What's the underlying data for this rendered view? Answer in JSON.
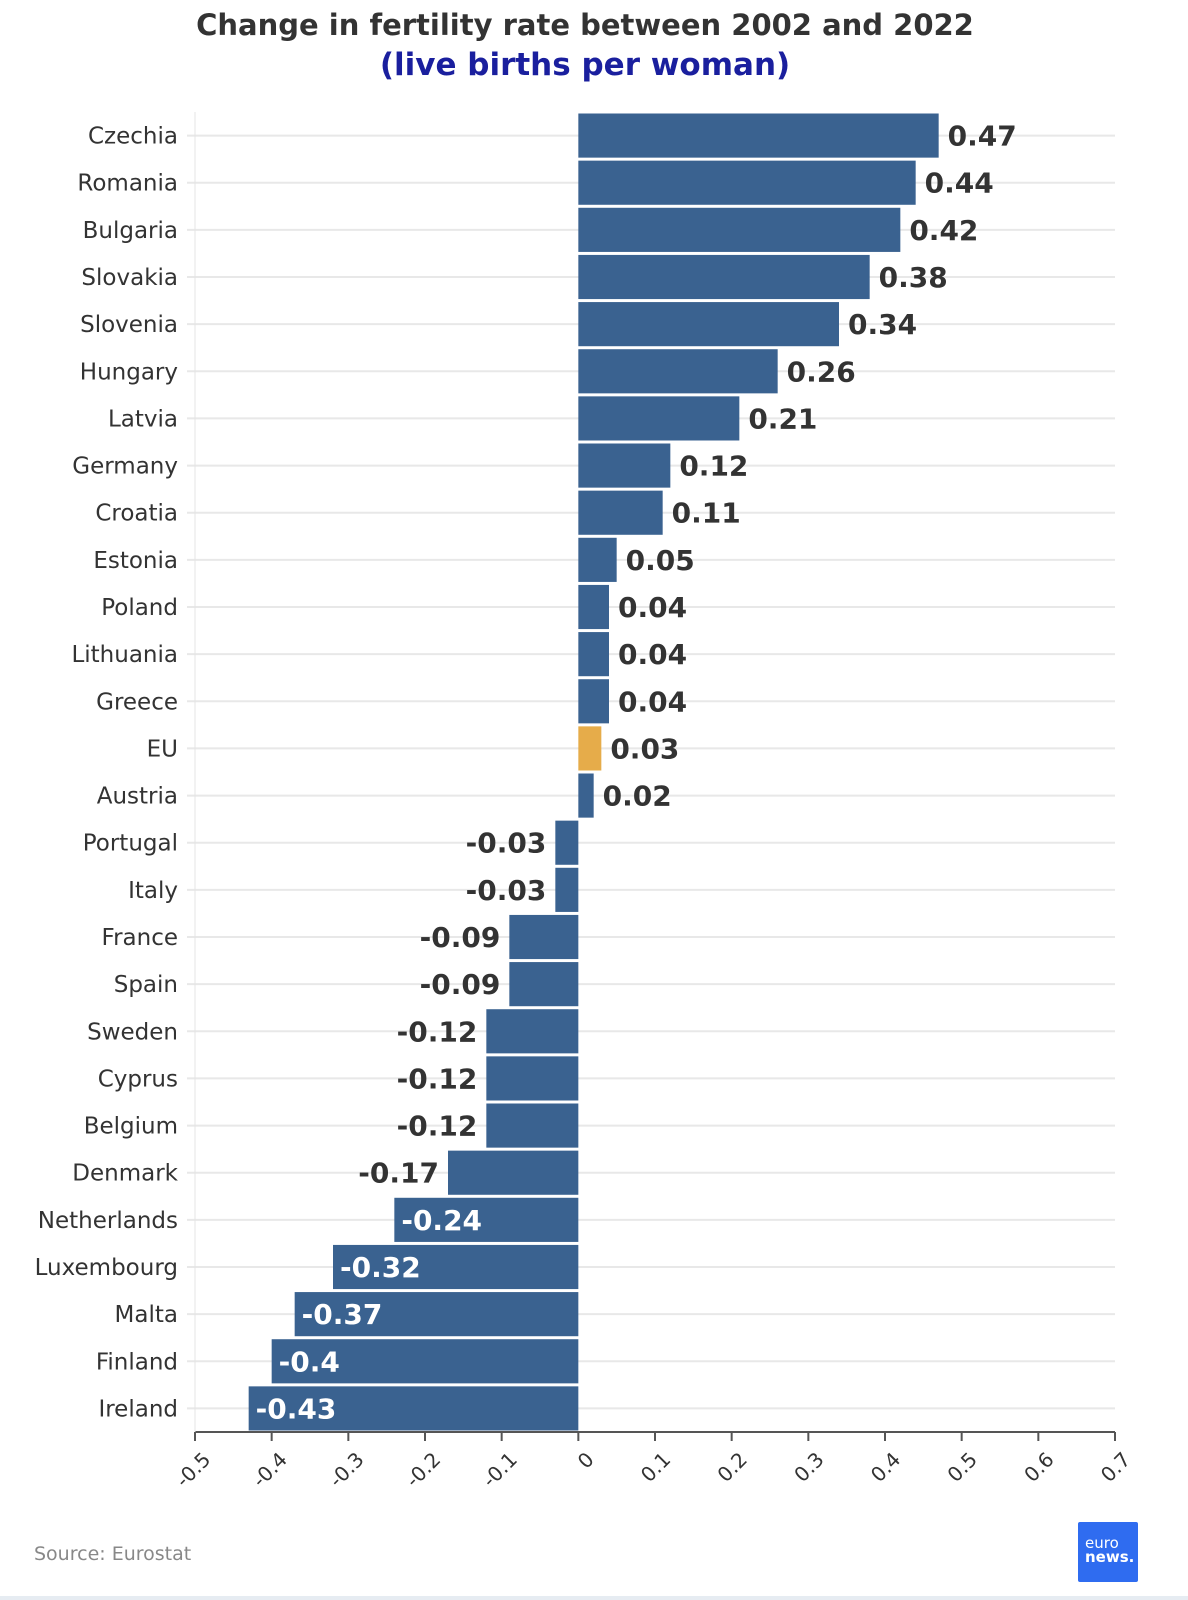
{
  "header": {
    "title": "Change in fertility rate between 2002 and 2022",
    "subtitle": "(live births per woman)"
  },
  "footer": {
    "source": "Source: Eurostat",
    "logo_line1": "euro",
    "logo_line2": "news."
  },
  "colors": {
    "bar": "#3a6290",
    "highlight": "#e6ac4a",
    "grid": "#e8e8e8",
    "text": "#333333"
  },
  "chart_data": {
    "type": "bar",
    "orientation": "horizontal",
    "title": "Change in fertility rate between 2002 and 2022",
    "subtitle": "(live births per woman)",
    "categories": [
      "Czechia",
      "Romania",
      "Bulgaria",
      "Slovakia",
      "Slovenia",
      "Hungary",
      "Latvia",
      "Germany",
      "Croatia",
      "Estonia",
      "Poland",
      "Lithuania",
      "Greece",
      "EU",
      "Austria",
      "Portugal",
      "Italy",
      "France",
      "Spain",
      "Sweden",
      "Cyprus",
      "Belgium",
      "Denmark",
      "Netherlands",
      "Luxembourg",
      "Malta",
      "Finland",
      "Ireland"
    ],
    "values": [
      0.47,
      0.44,
      0.42,
      0.38,
      0.34,
      0.26,
      0.21,
      0.12,
      0.11,
      0.05,
      0.04,
      0.04,
      0.04,
      0.03,
      0.02,
      -0.03,
      -0.03,
      -0.09,
      -0.09,
      -0.12,
      -0.12,
      -0.12,
      -0.17,
      -0.24,
      -0.32,
      -0.37,
      -0.4,
      -0.43
    ],
    "labels": [
      "0.47",
      "0.44",
      "0.42",
      "0.38",
      "0.34",
      "0.26",
      "0.21",
      "0.12",
      "0.11",
      "0.05",
      "0.04",
      "0.04",
      "0.04",
      "0.03",
      "0.02",
      "-0.03",
      "-0.03",
      "-0.09",
      "-0.09",
      "-0.12",
      "-0.12",
      "-0.12",
      "-0.17",
      "-0.24",
      "-0.32",
      "-0.37",
      "-0.4",
      "-0.43"
    ],
    "highlight": "EU",
    "xlim": [
      -0.5,
      0.7
    ],
    "xticks": [
      -0.5,
      -0.4,
      -0.3,
      -0.2,
      -0.1,
      0,
      0.1,
      0.2,
      0.3,
      0.4,
      0.5,
      0.6,
      0.7
    ],
    "xtick_labels": [
      "-0.5",
      "-0.4",
      "-0.3",
      "-0.2",
      "-0.1",
      "0",
      "0.1",
      "0.2",
      "0.3",
      "0.4",
      "0.5",
      "0.6",
      "0.7"
    ],
    "grid": true,
    "legend": "none"
  }
}
